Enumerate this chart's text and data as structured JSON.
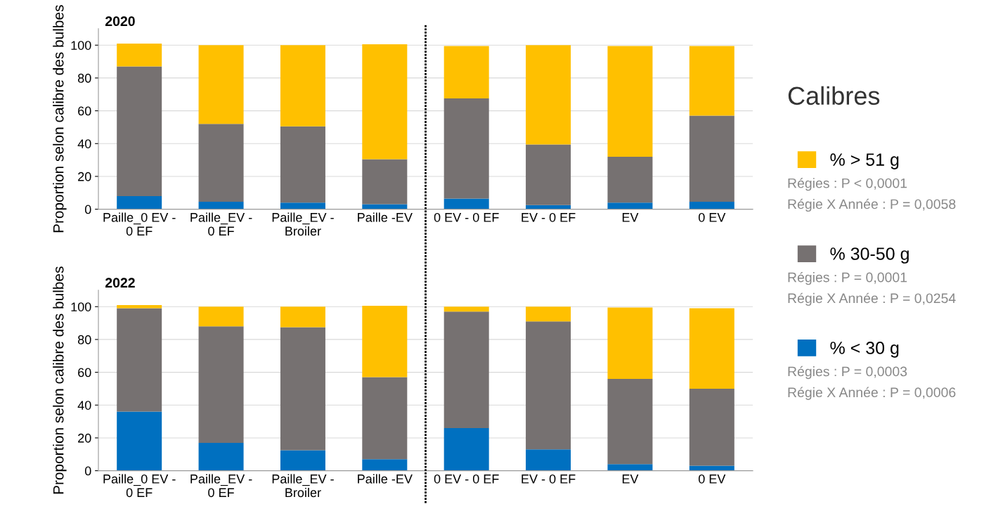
{
  "chart_data": [
    {
      "type": "bar",
      "title": "2020",
      "ylabel": "Proportion selon calibre des bulbes",
      "legend_title": "Calibres",
      "stacked": true,
      "grid": "y",
      "legend": "right",
      "ylim": [
        0,
        110
      ],
      "yticks": [
        0,
        20,
        40,
        60,
        80,
        100
      ],
      "categories": [
        "Paille_0 EV - 0 EF",
        "Paille_EV - 0 EF",
        "Paille_EV - Broiler",
        "Paille -EV",
        "0 EV - 0 EF",
        "EV - 0 EF",
        "EV",
        "0 EV"
      ],
      "series": [
        {
          "name": "% < 30 g",
          "color": "#0070c0",
          "values": [
            8,
            4.5,
            4,
            3,
            6.5,
            2.5,
            4,
            4.5
          ]
        },
        {
          "name": "% 30-50 g",
          "color": "#767171",
          "values": [
            79,
            47.5,
            46.5,
            27.5,
            61,
            37,
            28,
            52.5
          ]
        },
        {
          "name": "% > 51 g",
          "color": "#ffc000",
          "values": [
            14,
            48,
            49.5,
            70,
            32,
            60.5,
            67.5,
            42.5
          ]
        }
      ],
      "annotations": [
        "Régies : P < 0,0001",
        "Régie X Année : P = 0,0058",
        "Régies : P = 0,0001",
        "Régie X Année : P = 0,0254",
        "Régies : P = 0,0003",
        "Régie X Année : P = 0,0006"
      ]
    },
    {
      "type": "bar",
      "title": "2022",
      "ylabel": "Proportion selon calibre des bulbes",
      "stacked": true,
      "grid": "y",
      "ylim": [
        0,
        110
      ],
      "yticks": [
        0,
        20,
        40,
        60,
        80,
        100
      ],
      "categories": [
        "Paille_0 EV - 0 EF",
        "Paille_EV - 0 EF",
        "Paille_EV - Broiler",
        "Paille -EV",
        "0 EV - 0 EF",
        "EV - 0 EF",
        "EV",
        "0 EV"
      ],
      "series": [
        {
          "color": "#0070c0",
          "values": [
            36,
            17,
            12.5,
            7,
            26,
            13,
            4,
            3
          ]
        },
        {
          "color": "#767171",
          "values": [
            63,
            71,
            75,
            50,
            71,
            78,
            52,
            47
          ]
        },
        {
          "color": "#ffc000",
          "values": [
            2,
            12,
            12.5,
            43.5,
            3,
            9,
            43.5,
            49
          ]
        }
      ]
    }
  ]
}
